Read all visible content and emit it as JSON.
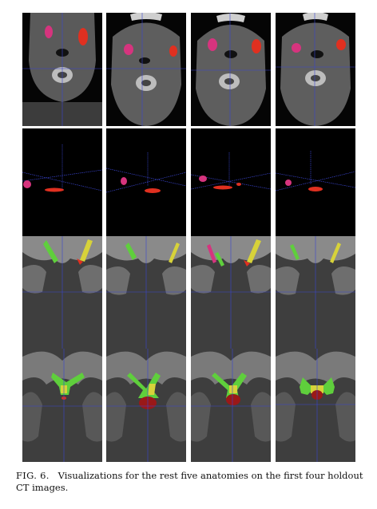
{
  "figure": {
    "label": "FIG. 6.",
    "caption": "Visualizations for the rest five anatomies on the first four holdout CT images."
  },
  "grid": {
    "rows": [
      {
        "name": "axial-ct-view",
        "panels": 4
      },
      {
        "name": "3d-render-view",
        "panels": 4
      },
      {
        "name": "coronal-ct-view",
        "panels": 4
      },
      {
        "name": "axial-skull-base-view",
        "panels": 4
      }
    ]
  },
  "colors": {
    "magenta_structure": "#d6347e",
    "red_structure": "#e03020",
    "green_structure": "#5fcf3c",
    "yellow_structure": "#d7d23a",
    "crosshair": "#3a45d0"
  }
}
